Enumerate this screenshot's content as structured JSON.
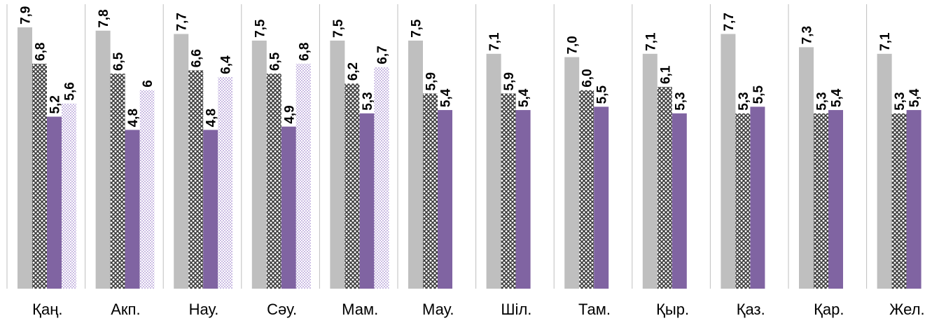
{
  "chart_data": {
    "type": "bar",
    "title": "",
    "xlabel": "",
    "ylabel": "",
    "ylim": [
      0,
      8.6
    ],
    "grid": false,
    "legend": "none",
    "categories": [
      "Қаң.",
      "Акп.",
      "Нау.",
      "Сәу.",
      "Мам.",
      "Мау.",
      "Шіл.",
      "Там.",
      "Қыр.",
      "Қаз.",
      "Қар.",
      "Жел."
    ],
    "series": [
      {
        "color": "#bfbfbf",
        "pattern": "solid",
        "values": [
          7.9,
          7.8,
          7.7,
          7.5,
          7.5,
          7.5,
          7.1,
          7.0,
          7.1,
          7.7,
          7.3,
          7.1
        ],
        "labels": [
          "7,9",
          "7,8",
          "7,7",
          "7,5",
          "7,5",
          "7,5",
          "7,1",
          "7,0",
          "7,1",
          "7,7",
          "7,3",
          "7,1"
        ]
      },
      {
        "color": "#404040",
        "pattern": "crosshatch",
        "values": [
          6.8,
          6.5,
          6.6,
          6.5,
          6.2,
          5.9,
          5.9,
          6.0,
          6.1,
          5.3,
          5.3,
          5.3
        ],
        "labels": [
          "6,8",
          "6,5",
          "6,6",
          "6,5",
          "6,2",
          "5,9",
          "5,9",
          "6,0",
          "6,1",
          "5,3",
          "5,3",
          "5,3"
        ]
      },
      {
        "color": "#8064a2",
        "pattern": "solid",
        "values": [
          5.2,
          4.8,
          4.8,
          4.9,
          5.3,
          5.4,
          5.4,
          5.5,
          5.3,
          5.5,
          5.4,
          5.4
        ],
        "labels": [
          "5,2",
          "4,8",
          "4,8",
          "4,9",
          "5,3",
          "5,4",
          "5,4",
          "5,5",
          "5,3",
          "5,5",
          "5,4",
          "5,4"
        ]
      },
      {
        "color": "#a58bd0",
        "pattern": "dotted",
        "values": [
          5.6,
          6,
          6.4,
          6.8,
          6.7,
          null,
          null,
          null,
          null,
          null,
          null,
          null
        ],
        "labels": [
          "5,6",
          "6",
          "6,4",
          "6,8",
          "6,7",
          "",
          "",
          "",
          "",
          "",
          "",
          ""
        ]
      }
    ]
  }
}
